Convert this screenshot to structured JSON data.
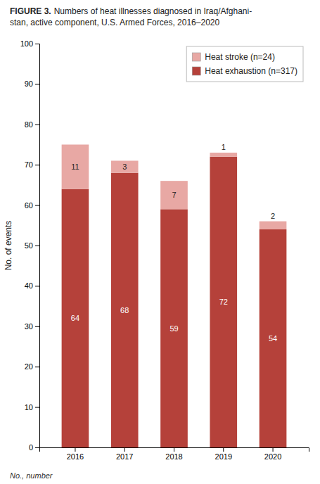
{
  "chart_data": {
    "type": "bar",
    "stacked": true,
    "title": "FIGURE 3.",
    "subtitle": "Numbers of heat illnesses diagnosed in Iraq/Afghani-\nstan, active component, U.S. Armed Forces, 2016–2020",
    "annotations": [
      "No., number"
    ],
    "y_label": "No. of events",
    "categories": [
      "2016",
      "2017",
      "2018",
      "2019",
      "2020"
    ],
    "series": [
      {
        "name": "Heat exhaustion (n=317)",
        "color": "#b5413a",
        "values": [
          64,
          68,
          59,
          72,
          54
        ]
      },
      {
        "name": "Heat stroke (n=24)",
        "color": "#e8a8a4",
        "values": [
          11,
          3,
          7,
          1,
          2
        ]
      }
    ],
    "ylim": [
      0,
      100
    ],
    "yticks": [
      0,
      10,
      20,
      30,
      40,
      50,
      60,
      70,
      80,
      90,
      100
    ],
    "grid": false,
    "legend": "upper right",
    "data_labels": true
  }
}
